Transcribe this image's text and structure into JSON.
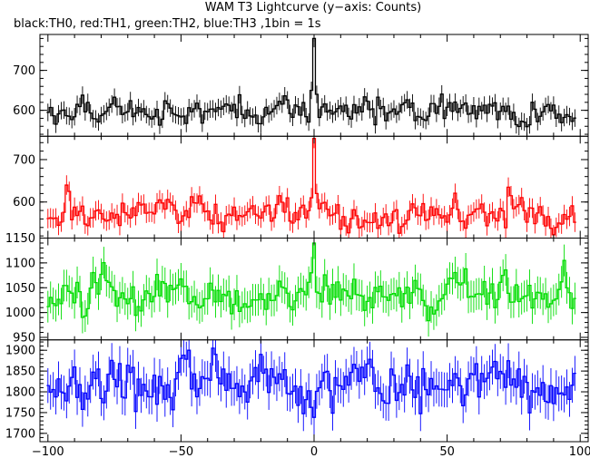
{
  "figure": {
    "title": "WAM T3 Lightcurve (y−axis: Counts)",
    "subtitle": "black:TH0, red:TH1, green:TH2, blue:TH3 ,1bin = 1s"
  },
  "chart_data": {
    "type": "line",
    "style": "step histogram with error bars, four stacked panels sharing x-axis",
    "title": "WAM T3 Lightcurve (y−axis: Counts)",
    "subtitle": "black:TH0, red:TH1, green:TH2, blue:TH3 ,1bin = 1s",
    "xlabel": "",
    "xlim": [
      -103,
      103
    ],
    "x_ticks": [
      -100,
      -50,
      0,
      50,
      100
    ],
    "x_tick_labels": [
      "−100",
      "−50",
      "0",
      "50",
      "100"
    ],
    "x_range_data": [
      -100,
      98
    ],
    "bin_width": 1,
    "grid": false,
    "legend": "none (colors described in subtitle)",
    "series": [
      {
        "name": "TH0",
        "color": "#000000",
        "ylim": [
          535,
          790
        ],
        "y_ticks": [
          600,
          700
        ],
        "baseline": 598,
        "noise_sd": 16,
        "error": 22,
        "events": [
          {
            "x": -1,
            "value": 650
          },
          {
            "x": 0,
            "value": 780
          },
          {
            "x": 1,
            "value": 640
          }
        ]
      },
      {
        "name": "TH1",
        "color": "#ff0000",
        "ylim": [
          515,
          755
        ],
        "y_ticks": [
          600,
          700
        ],
        "baseline": 572,
        "noise_sd": 18,
        "error": 23,
        "events": [
          {
            "x": -93,
            "value": 640
          },
          {
            "x": -92,
            "value": 625
          },
          {
            "x": -1,
            "value": 610
          },
          {
            "x": 0,
            "value": 750
          },
          {
            "x": 1,
            "value": 620
          },
          {
            "x": 73,
            "value": 635
          },
          {
            "x": 74,
            "value": 615
          }
        ]
      },
      {
        "name": "TH2",
        "color": "#00dd00",
        "ylim": [
          945,
          1150
        ],
        "y_ticks": [
          950,
          1000,
          1050,
          1100,
          1150
        ],
        "baseline": 1033,
        "noise_sd": 20,
        "error": 32,
        "events": [
          {
            "x": 0,
            "value": 1140
          },
          {
            "x": -1,
            "value": 1080
          },
          {
            "x": 94,
            "value": 1105
          }
        ]
      },
      {
        "name": "TH3",
        "color": "#0000ff",
        "ylim": [
          1680,
          1925
        ],
        "y_ticks": [
          1700,
          1750,
          1800,
          1850,
          1900
        ],
        "baseline": 1810,
        "noise_sd": 30,
        "error": 42,
        "events": [
          {
            "x": -38,
            "value": 1905
          },
          {
            "x": -37,
            "value": 1890
          }
        ]
      }
    ]
  }
}
